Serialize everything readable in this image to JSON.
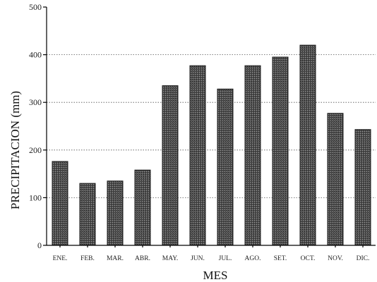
{
  "chart_data": {
    "type": "bar",
    "categories": [
      "ENE.",
      "FEB.",
      "MAR.",
      "ABR.",
      "MAY.",
      "JUN.",
      "JUL.",
      "AGO.",
      "SET.",
      "OCT.",
      "NOV.",
      "DIC."
    ],
    "values": [
      176,
      130,
      135,
      158,
      335,
      377,
      328,
      377,
      395,
      420,
      277,
      243
    ],
    "xlabel": "MES",
    "ylabel": "PRECIPITACION (mm)",
    "ylim": [
      0,
      500
    ],
    "yticks": [
      0,
      100,
      200,
      300,
      400,
      500
    ],
    "grid": "horizontal dotted",
    "bar_color": "#3a3a3a"
  }
}
